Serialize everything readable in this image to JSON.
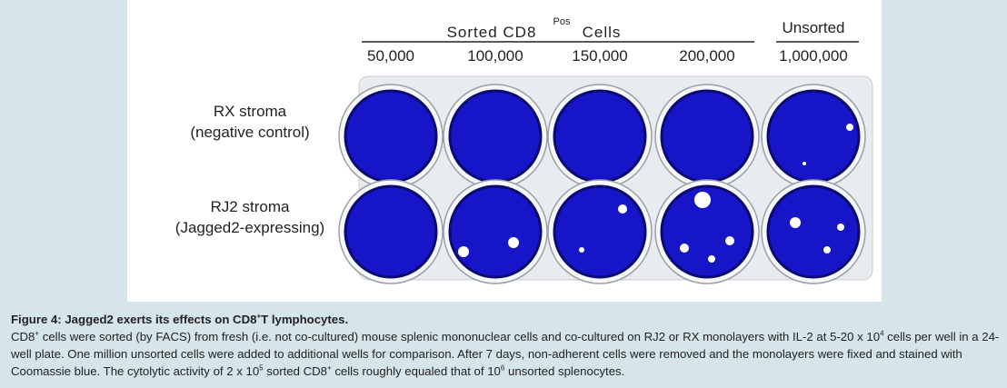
{
  "figure": {
    "header": {
      "sorted": "Sorted CD8",
      "sorted_sup": "Pos",
      "cells": "Cells",
      "unsorted": "Unsorted"
    },
    "columns": [
      "50,000",
      "100,000",
      "150,000",
      "200,000",
      "1,000,000"
    ],
    "rows": [
      {
        "name": "RX stroma",
        "note": "(negative control)"
      },
      {
        "name": "RJ2 stroma",
        "note": "(Jagged2-expressing)"
      }
    ]
  },
  "caption": {
    "title": [
      {
        "text": "Figure 4: Jagged2 exerts its effects on CD8"
      },
      {
        "sup": "+"
      },
      {
        "text": "T lymphocytes."
      }
    ],
    "body": [
      {
        "text": "CD8"
      },
      {
        "sup": "+"
      },
      {
        "text": " cells were sorted (by FACS) from fresh (i.e. not co-cultured) mouse splenic mononuclear cells and co-cultured on RJ2 or RX monolayers with IL-2 at 5-20 x 10"
      },
      {
        "sup": "4"
      },
      {
        "text": " cells per well in a 24- well plate. One million unsorted cells were added to additional wells for comparison. After 7 days, non-adherent cells were removed and the monolayers were fixed and stained with Coomassie blue. The cytolytic activity of 2 x 10"
      },
      {
        "sup": "5"
      },
      {
        "text": " sorted CD8"
      },
      {
        "sup": "+"
      },
      {
        "text": " cells roughly equaled that of 10"
      },
      {
        "sup": "6"
      },
      {
        "text": " unsorted splenocytes."
      }
    ]
  }
}
